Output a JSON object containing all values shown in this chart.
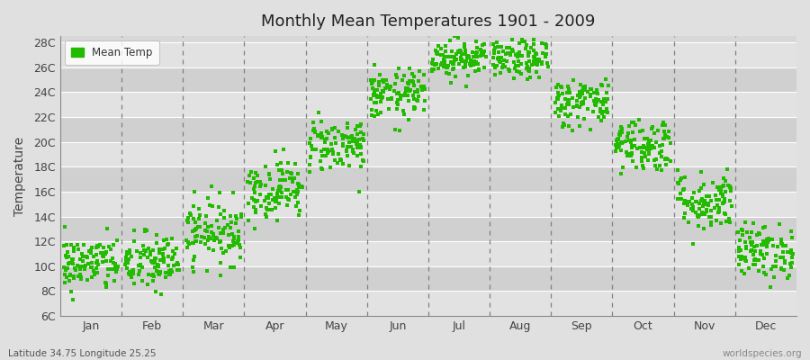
{
  "title": "Monthly Mean Temperatures 1901 - 2009",
  "ylabel": "Temperature",
  "xlabel_labels": [
    "Jan",
    "Feb",
    "Mar",
    "Apr",
    "May",
    "Jun",
    "Jul",
    "Aug",
    "Sep",
    "Oct",
    "Nov",
    "Dec"
  ],
  "ytick_labels": [
    "6C",
    "8C",
    "10C",
    "12C",
    "14C",
    "16C",
    "18C",
    "20C",
    "22C",
    "24C",
    "26C",
    "28C"
  ],
  "ytick_values": [
    6,
    8,
    10,
    12,
    14,
    16,
    18,
    20,
    22,
    24,
    26,
    28
  ],
  "ylim": [
    6,
    28.5
  ],
  "dot_color": "#22bb00",
  "fig_bg_color": "#e0e0e0",
  "plot_bg_color": "#d8d8d8",
  "stripe_color_light": "#e2e2e2",
  "stripe_color_dark": "#d0d0d0",
  "grid_color": "#ffffff",
  "dashed_line_color": "#808080",
  "legend_label": "Mean Temp",
  "subtitle": "Latitude 34.75 Longitude 25.25",
  "watermark": "worldspecies.org",
  "monthly_means": [
    10.2,
    10.3,
    12.8,
    16.2,
    19.8,
    23.8,
    26.8,
    26.6,
    23.2,
    19.8,
    15.2,
    11.2
  ],
  "monthly_stds": [
    1.1,
    1.2,
    1.3,
    1.2,
    1.1,
    1.0,
    0.8,
    0.8,
    1.0,
    1.1,
    1.2,
    1.1
  ],
  "n_years": 109,
  "seed": 42,
  "dot_size": 5
}
